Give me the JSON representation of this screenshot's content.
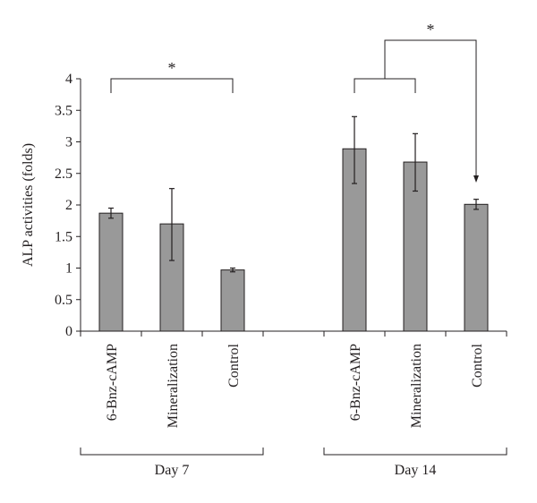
{
  "chart_data": {
    "type": "bar",
    "ylabel": "ALP activities (folds)",
    "xlabel": "",
    "title": "",
    "ylim": [
      0,
      4
    ],
    "yticks": [
      "0",
      "0.5",
      "1",
      "1.5",
      "2",
      "2.5",
      "3",
      "3.5",
      "4"
    ],
    "grid": false,
    "legend": "none",
    "bar_color": "#999999",
    "groups": [
      {
        "label": "Day 7",
        "categories": [
          "6-Bnz-cAMP",
          "Mineralization",
          "Control"
        ],
        "values": [
          1.87,
          1.7,
          0.97
        ],
        "error_low": [
          1.79,
          1.12,
          0.94
        ],
        "error_high": [
          1.95,
          2.26,
          1.0
        ]
      },
      {
        "label": "Day 14",
        "categories": [
          "6-Bnz-cAMP",
          "Mineralization",
          "Control"
        ],
        "values": [
          2.89,
          2.68,
          2.01
        ],
        "error_low": [
          2.34,
          2.22,
          1.93
        ],
        "error_high": [
          3.4,
          3.13,
          2.09
        ]
      }
    ],
    "annotations": [
      {
        "text": "*",
        "group": "Day 7",
        "compares": [
          "6-Bnz-cAMP",
          "Control"
        ]
      },
      {
        "text": "*",
        "group": "Day 14",
        "compares": [
          "6-Bnz-cAMP + Mineralization",
          "Control"
        ]
      }
    ]
  }
}
